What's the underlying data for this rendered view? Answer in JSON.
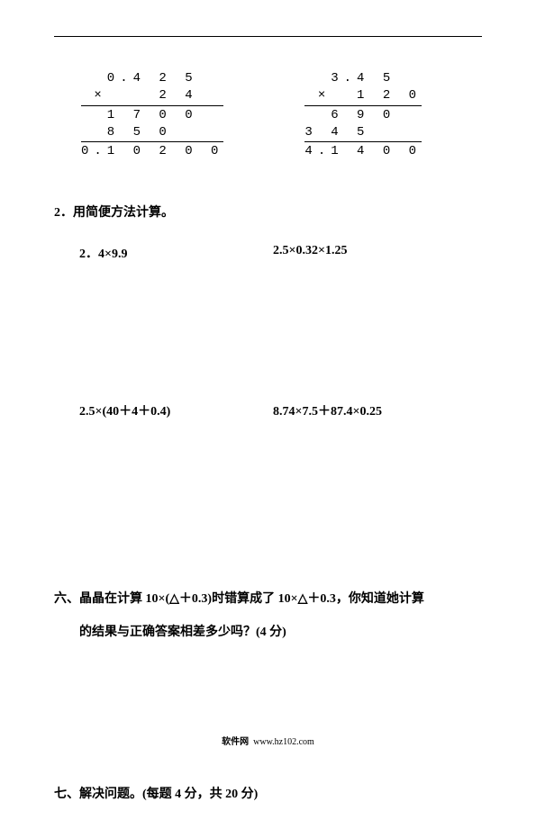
{
  "vertical_calc_1": {
    "l1": "  0.4 2 5",
    "l2": " ×    2 4",
    "l3": "  1 7 0 0",
    "l4": "  8 5 0",
    "l5": "0.1 0 2 0 0"
  },
  "vertical_calc_2": {
    "l1": "  3.4 5",
    "l2": " ×  1 2 0",
    "l3": "  6 9 0",
    "l4": "3 4 5",
    "l5": "4.1 4 0 0"
  },
  "q2_heading": "2．用简便方法计算。",
  "problems_row1": {
    "left": "2．4×9.9",
    "right": "2.5×0.32×1.25"
  },
  "problems_row2": {
    "left": "2.5×(40＋4＋0.4)",
    "right": "8.74×7.5＋87.4×0.25"
  },
  "q6": {
    "prefix": "六、",
    "line1_a": "晶晶在计算 10×(",
    "tri1": "△",
    "line1_b": "＋0.3)时错算成了 10×",
    "tri2": "△",
    "line1_c": "＋0.3，你知道她计算",
    "line2": "的结果与正确答案相差多少吗？(4 分)"
  },
  "q7": "七、解决问题。(每题 4 分，共 20 分)",
  "footer_label": "软件网",
  "footer_url": "www.hz102.com"
}
